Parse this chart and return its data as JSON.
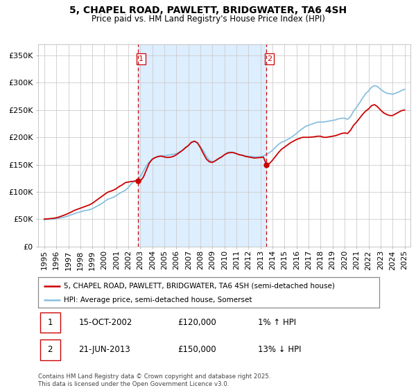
{
  "title": "5, CHAPEL ROAD, PAWLETT, BRIDGWATER, TA6 4SH",
  "subtitle": "Price paid vs. HM Land Registry's House Price Index (HPI)",
  "property_label": "5, CHAPEL ROAD, PAWLETT, BRIDGWATER, TA6 4SH (semi-detached house)",
  "hpi_label": "HPI: Average price, semi-detached house, Somerset",
  "footnote": "Contains HM Land Registry data © Crown copyright and database right 2025.\nThis data is licensed under the Open Government Licence v3.0.",
  "transaction1": {
    "number": 1,
    "date": "15-OCT-2002",
    "price": "£120,000",
    "hpi_change": "1% ↑ HPI"
  },
  "transaction2": {
    "number": 2,
    "date": "21-JUN-2013",
    "price": "£150,000",
    "hpi_change": "13% ↓ HPI"
  },
  "vline1_x": 2002.79,
  "vline2_x": 2013.47,
  "marker1_y": 120000,
  "marker2_y": 150000,
  "property_color": "#cc0000",
  "hpi_color": "#88c0e0",
  "background_color": "#ffffff",
  "shade_color": "#ddeeff",
  "grid_color": "#cccccc",
  "ylim": [
    0,
    370000
  ],
  "xlim": [
    1994.5,
    2025.5
  ],
  "yticks": [
    0,
    50000,
    100000,
    150000,
    200000,
    250000,
    300000,
    350000
  ],
  "ytick_labels": [
    "£0",
    "£50K",
    "£100K",
    "£150K",
    "£200K",
    "£250K",
    "£300K",
    "£350K"
  ],
  "xticks": [
    1995,
    1996,
    1997,
    1998,
    1999,
    2000,
    2001,
    2002,
    2003,
    2004,
    2005,
    2006,
    2007,
    2008,
    2009,
    2010,
    2011,
    2012,
    2013,
    2014,
    2015,
    2016,
    2017,
    2018,
    2019,
    2020,
    2021,
    2022,
    2023,
    2024,
    2025
  ],
  "hpi_data": [
    [
      1995.0,
      49000
    ],
    [
      1995.25,
      49500
    ],
    [
      1995.5,
      50000
    ],
    [
      1995.75,
      49800
    ],
    [
      1996.0,
      51000
    ],
    [
      1996.25,
      52000
    ],
    [
      1996.5,
      53000
    ],
    [
      1996.75,
      54000
    ],
    [
      1997.0,
      56000
    ],
    [
      1997.25,
      58000
    ],
    [
      1997.5,
      60000
    ],
    [
      1997.75,
      62000
    ],
    [
      1998.0,
      63000
    ],
    [
      1998.25,
      65000
    ],
    [
      1998.5,
      66000
    ],
    [
      1998.75,
      67000
    ],
    [
      1999.0,
      69000
    ],
    [
      1999.25,
      72000
    ],
    [
      1999.5,
      75000
    ],
    [
      1999.75,
      78000
    ],
    [
      2000.0,
      82000
    ],
    [
      2000.25,
      86000
    ],
    [
      2000.5,
      88000
    ],
    [
      2000.75,
      90000
    ],
    [
      2001.0,
      93000
    ],
    [
      2001.25,
      97000
    ],
    [
      2001.5,
      100000
    ],
    [
      2001.75,
      103000
    ],
    [
      2002.0,
      108000
    ],
    [
      2002.25,
      115000
    ],
    [
      2002.5,
      120000
    ],
    [
      2002.75,
      122000
    ],
    [
      2003.0,
      128000
    ],
    [
      2003.25,
      138000
    ],
    [
      2003.5,
      148000
    ],
    [
      2003.75,
      155000
    ],
    [
      2004.0,
      160000
    ],
    [
      2004.25,
      163000
    ],
    [
      2004.5,
      165000
    ],
    [
      2004.75,
      166000
    ],
    [
      2005.0,
      166000
    ],
    [
      2005.25,
      167000
    ],
    [
      2005.5,
      168000
    ],
    [
      2005.75,
      169000
    ],
    [
      2006.0,
      170000
    ],
    [
      2006.25,
      173000
    ],
    [
      2006.5,
      176000
    ],
    [
      2006.75,
      180000
    ],
    [
      2007.0,
      185000
    ],
    [
      2007.25,
      190000
    ],
    [
      2007.5,
      192000
    ],
    [
      2007.75,
      190000
    ],
    [
      2008.0,
      183000
    ],
    [
      2008.25,
      175000
    ],
    [
      2008.5,
      165000
    ],
    [
      2008.75,
      158000
    ],
    [
      2009.0,
      155000
    ],
    [
      2009.25,
      157000
    ],
    [
      2009.5,
      160000
    ],
    [
      2009.75,
      163000
    ],
    [
      2010.0,
      168000
    ],
    [
      2010.25,
      172000
    ],
    [
      2010.5,
      173000
    ],
    [
      2010.75,
      172000
    ],
    [
      2011.0,
      170000
    ],
    [
      2011.25,
      168000
    ],
    [
      2011.5,
      167000
    ],
    [
      2011.75,
      166000
    ],
    [
      2012.0,
      165000
    ],
    [
      2012.25,
      165000
    ],
    [
      2012.5,
      164000
    ],
    [
      2012.75,
      164000
    ],
    [
      2013.0,
      164000
    ],
    [
      2013.25,
      166000
    ],
    [
      2013.5,
      169000
    ],
    [
      2013.75,
      172000
    ],
    [
      2014.0,
      176000
    ],
    [
      2014.25,
      182000
    ],
    [
      2014.5,
      187000
    ],
    [
      2014.75,
      191000
    ],
    [
      2015.0,
      193000
    ],
    [
      2015.25,
      196000
    ],
    [
      2015.5,
      199000
    ],
    [
      2015.75,
      203000
    ],
    [
      2016.0,
      207000
    ],
    [
      2016.25,
      212000
    ],
    [
      2016.5,
      216000
    ],
    [
      2016.75,
      220000
    ],
    [
      2017.0,
      222000
    ],
    [
      2017.25,
      224000
    ],
    [
      2017.5,
      226000
    ],
    [
      2017.75,
      228000
    ],
    [
      2018.0,
      228000
    ],
    [
      2018.25,
      228000
    ],
    [
      2018.5,
      229000
    ],
    [
      2018.75,
      230000
    ],
    [
      2019.0,
      231000
    ],
    [
      2019.25,
      232000
    ],
    [
      2019.5,
      234000
    ],
    [
      2019.75,
      235000
    ],
    [
      2020.0,
      235000
    ],
    [
      2020.25,
      233000
    ],
    [
      2020.5,
      238000
    ],
    [
      2020.75,
      248000
    ],
    [
      2021.0,
      255000
    ],
    [
      2021.25,
      263000
    ],
    [
      2021.5,
      272000
    ],
    [
      2021.75,
      280000
    ],
    [
      2022.0,
      285000
    ],
    [
      2022.25,
      292000
    ],
    [
      2022.5,
      295000
    ],
    [
      2022.75,
      293000
    ],
    [
      2023.0,
      288000
    ],
    [
      2023.25,
      284000
    ],
    [
      2023.5,
      281000
    ],
    [
      2023.75,
      280000
    ],
    [
      2024.0,
      279000
    ],
    [
      2024.25,
      281000
    ],
    [
      2024.5,
      283000
    ],
    [
      2024.75,
      286000
    ],
    [
      2025.0,
      288000
    ]
  ],
  "property_data": [
    [
      1995.0,
      50000
    ],
    [
      1995.25,
      50500
    ],
    [
      1995.5,
      51000
    ],
    [
      1995.75,
      51500
    ],
    [
      1996.0,
      52500
    ],
    [
      1996.25,
      54000
    ],
    [
      1996.5,
      56000
    ],
    [
      1996.75,
      58000
    ],
    [
      1997.0,
      60500
    ],
    [
      1997.25,
      63000
    ],
    [
      1997.5,
      66000
    ],
    [
      1997.75,
      68000
    ],
    [
      1998.0,
      70000
    ],
    [
      1998.25,
      72000
    ],
    [
      1998.5,
      74000
    ],
    [
      1998.75,
      76000
    ],
    [
      1999.0,
      79000
    ],
    [
      1999.25,
      83000
    ],
    [
      1999.5,
      87000
    ],
    [
      1999.75,
      91000
    ],
    [
      2000.0,
      95000
    ],
    [
      2000.25,
      99000
    ],
    [
      2000.5,
      101000
    ],
    [
      2000.75,
      103000
    ],
    [
      2001.0,
      106000
    ],
    [
      2001.25,
      110000
    ],
    [
      2001.5,
      113000
    ],
    [
      2001.75,
      117000
    ],
    [
      2002.0,
      118000
    ],
    [
      2002.25,
      119000
    ],
    [
      2002.5,
      119500
    ],
    [
      2002.75,
      120000
    ],
    [
      2003.0,
      120000
    ],
    [
      2003.25,
      127000
    ],
    [
      2003.5,
      140000
    ],
    [
      2003.75,
      153000
    ],
    [
      2004.0,
      160000
    ],
    [
      2004.25,
      163000
    ],
    [
      2004.5,
      165000
    ],
    [
      2004.75,
      165500
    ],
    [
      2005.0,
      164000
    ],
    [
      2005.25,
      163000
    ],
    [
      2005.5,
      163500
    ],
    [
      2005.75,
      165000
    ],
    [
      2006.0,
      168000
    ],
    [
      2006.25,
      172000
    ],
    [
      2006.5,
      176000
    ],
    [
      2006.75,
      181000
    ],
    [
      2007.0,
      185000
    ],
    [
      2007.25,
      191000
    ],
    [
      2007.5,
      193000
    ],
    [
      2007.75,
      190000
    ],
    [
      2008.0,
      181000
    ],
    [
      2008.25,
      170000
    ],
    [
      2008.5,
      160000
    ],
    [
      2008.75,
      155000
    ],
    [
      2009.0,
      154000
    ],
    [
      2009.25,
      157000
    ],
    [
      2009.5,
      161000
    ],
    [
      2009.75,
      164000
    ],
    [
      2010.0,
      168000
    ],
    [
      2010.25,
      171000
    ],
    [
      2010.5,
      172000
    ],
    [
      2010.75,
      172000
    ],
    [
      2011.0,
      170000
    ],
    [
      2011.25,
      168000
    ],
    [
      2011.5,
      167000
    ],
    [
      2011.75,
      165000
    ],
    [
      2012.0,
      164000
    ],
    [
      2012.25,
      163000
    ],
    [
      2012.5,
      162000
    ],
    [
      2012.75,
      162500
    ],
    [
      2013.0,
      163000
    ],
    [
      2013.25,
      163500
    ],
    [
      2013.5,
      150000
    ],
    [
      2013.75,
      152000
    ],
    [
      2014.0,
      158000
    ],
    [
      2014.25,
      165000
    ],
    [
      2014.5,
      172000
    ],
    [
      2014.75,
      178000
    ],
    [
      2015.0,
      182000
    ],
    [
      2015.25,
      186000
    ],
    [
      2015.5,
      190000
    ],
    [
      2015.75,
      193000
    ],
    [
      2016.0,
      196000
    ],
    [
      2016.25,
      198000
    ],
    [
      2016.5,
      200000
    ],
    [
      2016.75,
      200000
    ],
    [
      2017.0,
      200000
    ],
    [
      2017.25,
      200500
    ],
    [
      2017.5,
      201000
    ],
    [
      2017.75,
      202000
    ],
    [
      2018.0,
      202000
    ],
    [
      2018.25,
      200000
    ],
    [
      2018.5,
      200000
    ],
    [
      2018.75,
      201000
    ],
    [
      2019.0,
      202000
    ],
    [
      2019.25,
      203000
    ],
    [
      2019.5,
      205000
    ],
    [
      2019.75,
      207000
    ],
    [
      2020.0,
      208000
    ],
    [
      2020.25,
      207000
    ],
    [
      2020.5,
      213000
    ],
    [
      2020.75,
      222000
    ],
    [
      2021.0,
      228000
    ],
    [
      2021.25,
      235000
    ],
    [
      2021.5,
      242000
    ],
    [
      2021.75,
      248000
    ],
    [
      2022.0,
      252000
    ],
    [
      2022.25,
      258000
    ],
    [
      2022.5,
      260000
    ],
    [
      2022.75,
      256000
    ],
    [
      2023.0,
      250000
    ],
    [
      2023.25,
      245000
    ],
    [
      2023.5,
      242000
    ],
    [
      2023.75,
      240000
    ],
    [
      2024.0,
      240000
    ],
    [
      2024.25,
      243000
    ],
    [
      2024.5,
      246000
    ],
    [
      2024.75,
      249000
    ],
    [
      2025.0,
      250000
    ]
  ]
}
